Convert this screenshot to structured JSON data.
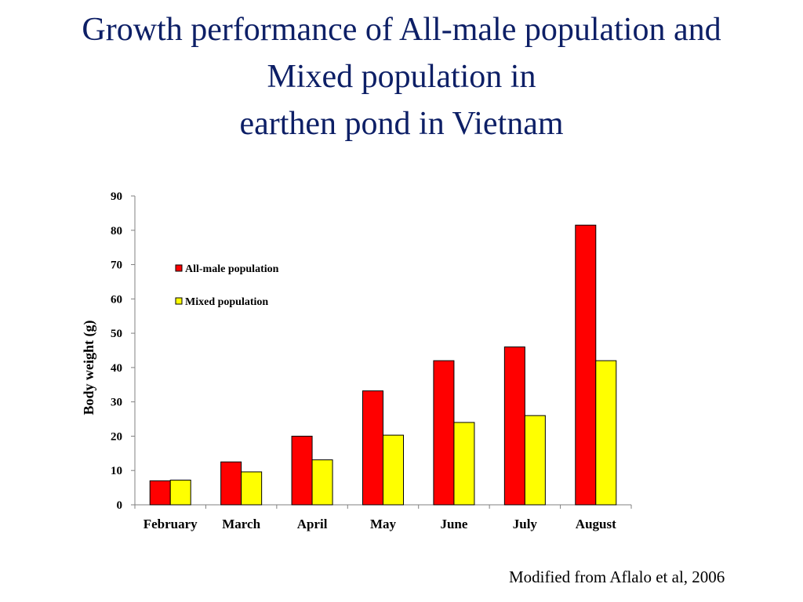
{
  "title": {
    "lines": [
      "Growth performance of All-male population and",
      "Mixed population in",
      "earthen pond in Vietnam"
    ]
  },
  "source": "Modified from Aflalo et al, 2006",
  "chart_data": {
    "type": "bar",
    "categories": [
      "February",
      "March",
      "April",
      "May",
      "June",
      "July",
      "August"
    ],
    "series": [
      {
        "name": "All-male population",
        "color": "#ff0000",
        "values": [
          7,
          12.5,
          20,
          33.2,
          42,
          46,
          81.5
        ]
      },
      {
        "name": "Mixed population",
        "color": "#ffff00",
        "values": [
          7.2,
          9.6,
          13.1,
          20.3,
          24,
          26,
          42
        ]
      }
    ],
    "ylabel": "Body weight (g)",
    "xlabel": "",
    "ylim": [
      0,
      90
    ],
    "yticks": [
      0,
      10,
      20,
      30,
      40,
      50,
      60,
      70,
      80,
      90
    ],
    "grid": false,
    "legend_position": "top-left"
  }
}
